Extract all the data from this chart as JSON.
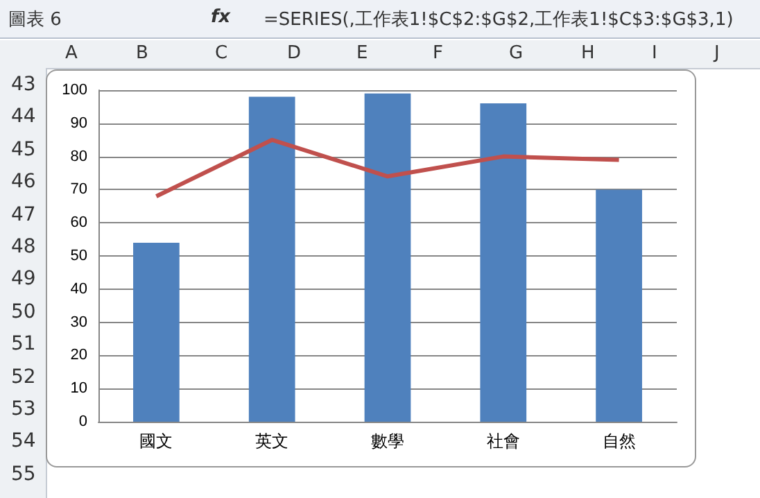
{
  "chart_data": {
    "type": "bar",
    "categories": [
      "國文",
      "英文",
      "數學",
      "社會",
      "自然"
    ],
    "series": [
      {
        "color": "#4f81bd",
        "values": [
          54,
          98,
          99,
          96,
          70
        ]
      },
      {
        "type": "line",
        "color": "#c0504d",
        "values": [
          68,
          85,
          74,
          80,
          79
        ]
      }
    ],
    "ylim": [
      0,
      100
    ],
    "yticks": [
      0,
      10,
      20,
      30,
      40,
      50,
      60,
      70,
      80,
      90,
      100
    ],
    "grid": "y",
    "marker": "none",
    "annotations": [
      "圖表 6",
      "fx",
      "=SERIES(,工作表1!$C$2:$G$2,工作表1!$C$3:$G$3,1)",
      "A",
      "B",
      "C",
      "D",
      "E",
      "F",
      "G",
      "H",
      "I",
      "J",
      "43",
      "44",
      "45",
      "46",
      "47",
      "48",
      "49",
      "50",
      "51",
      "52",
      "53",
      "54",
      "55"
    ]
  }
}
